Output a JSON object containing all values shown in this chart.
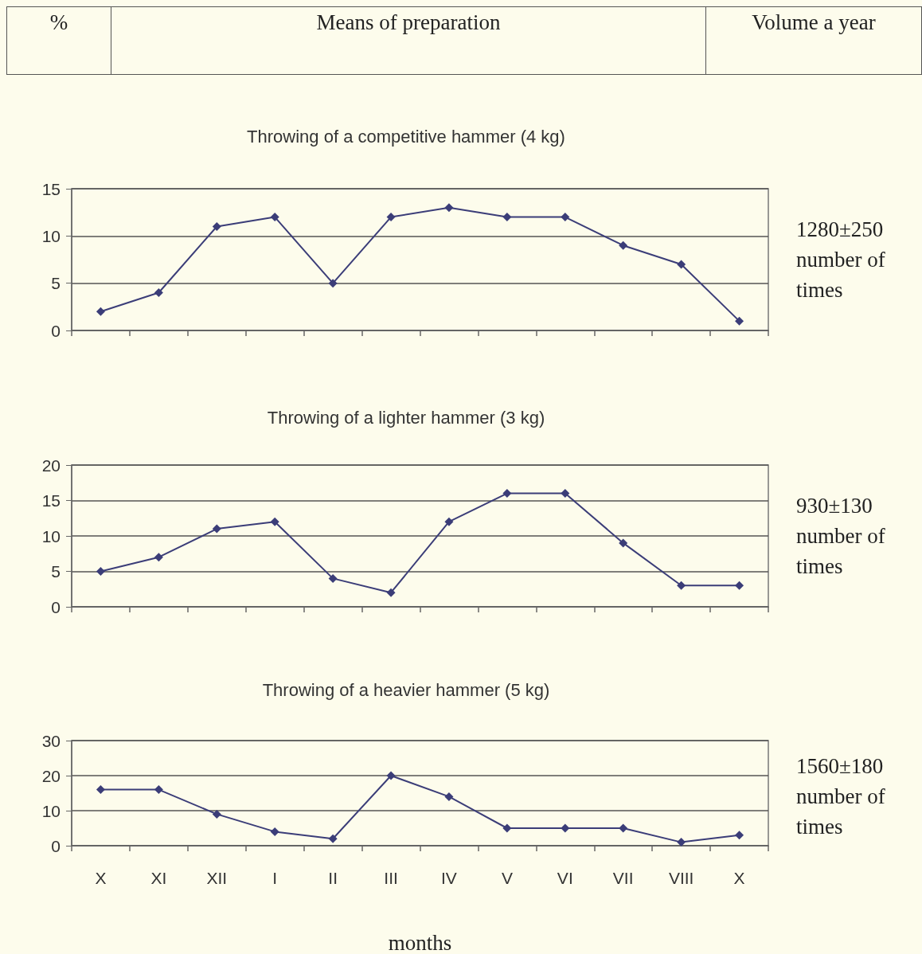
{
  "chart_data": [
    {
      "type": "line",
      "title": "Throwing of a competitive hammer (4 kg)",
      "categories": [
        null,
        null,
        null,
        null,
        null,
        null,
        null,
        null,
        null,
        null,
        null,
        null
      ],
      "series": [
        {
          "color": "#3b3d78",
          "values": [
            2,
            4,
            11,
            12,
            5,
            12,
            13,
            12,
            12,
            9,
            7,
            1
          ]
        }
      ],
      "ylim": [
        0,
        15
      ],
      "yticks": [
        0,
        5,
        10,
        15
      ],
      "grid": "y",
      "marker": "diamond",
      "line_style": "solid",
      "tick_labels": "y",
      "annotations": [
        "%",
        "Means of preparation",
        "Volume a year",
        "1280±250 number of times"
      ]
    },
    {
      "type": "line",
      "title": "Throwing of a lighter hammer (3 kg)",
      "categories": [
        null,
        null,
        null,
        null,
        null,
        null,
        null,
        null,
        null,
        null,
        null,
        null
      ],
      "series": [
        {
          "color": "#3b3d78",
          "values": [
            5,
            7,
            11,
            12,
            4,
            2,
            12,
            16,
            16,
            9,
            3,
            3
          ]
        }
      ],
      "ylim": [
        0,
        20
      ],
      "yticks": [
        0,
        5,
        10,
        15,
        20
      ],
      "grid": "y",
      "marker": "diamond",
      "line_style": "solid",
      "tick_labels": "y",
      "annotations": [
        "930±130 number of times"
      ]
    },
    {
      "type": "line",
      "title": "Throwing of a heavier hammer (5 kg)",
      "xlabel": "months",
      "categories": [
        "X",
        "XI",
        "XII",
        "I",
        "II",
        "III",
        "IV",
        "V",
        "VI",
        "VII",
        "VIII",
        "X"
      ],
      "series": [
        {
          "color": "#3b3d78",
          "values": [
            16,
            16,
            9,
            4,
            2,
            20,
            14,
            5,
            5,
            5,
            1,
            3
          ]
        }
      ],
      "ylim": [
        0,
        30
      ],
      "yticks": [
        0,
        10,
        20,
        30
      ],
      "grid": "y",
      "marker": "diamond",
      "line_style": "solid",
      "annotations": [
        "1560±180 number of times"
      ]
    }
  ]
}
